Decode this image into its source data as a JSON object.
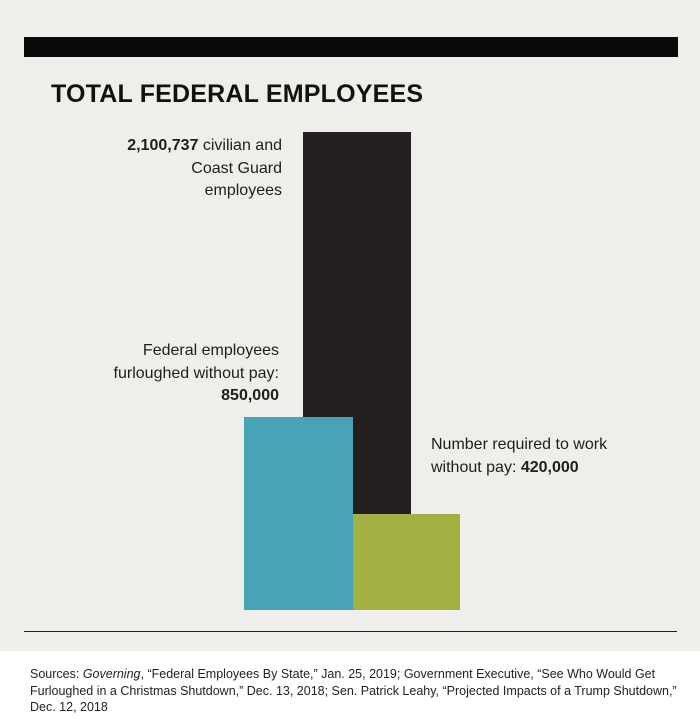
{
  "chart_data": {
    "type": "bar",
    "title": "TOTAL FEDERAL EMPLOYEES",
    "categories": [
      "civilian and Coast Guard employees",
      "Federal employees furloughed without pay",
      "Number required to work without pay"
    ],
    "values": [
      2100737,
      850000,
      420000
    ],
    "colors": [
      "#231f20",
      "#48a3b6",
      "#a3b043"
    ],
    "labels": {
      "total": {
        "value": "2,100,737",
        "text": " civilian and Coast Guard employees"
      },
      "furloughed": {
        "text": "Federal employees furloughed without pay: ",
        "value": "850,000"
      },
      "required": {
        "text": "Number required to work without pay: ",
        "value": "420,000"
      }
    },
    "ylim": [
      0,
      2100737
    ],
    "grid": false,
    "legend": "none"
  },
  "sources": {
    "prefix": "Sources: ",
    "publication": "Governing",
    "text": ", “Federal Employees By State,” Jan. 25, 2019; Government Executive, “See Who Would Get Furloughed in a Christmas Shutdown,” Dec. 13, 2018; Sen. Patrick Leahy, “Projected Impacts of a Trump Shutdown,” Dec. 12, 2018"
  }
}
